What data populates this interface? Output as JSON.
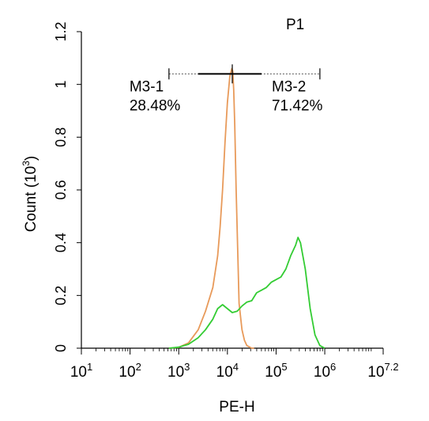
{
  "chart_data": {
    "type": "line",
    "title": "P1",
    "title_color": "#33cc33",
    "xlabel": "PE-H",
    "ylabel": "Count (10³)",
    "ylabel_main": "Count (10",
    "ylabel_exp": "3",
    "ylabel_close": ")",
    "x_scale": "log",
    "xlim": [
      10,
      15848931.9
    ],
    "ylim": [
      0,
      1.2
    ],
    "grid": false,
    "x_ticks": [
      {
        "value": 10,
        "base": "10",
        "exp": "1"
      },
      {
        "value": 100,
        "base": "10",
        "exp": "2"
      },
      {
        "value": 1000,
        "base": "10",
        "exp": "3"
      },
      {
        "value": 10000,
        "base": "10",
        "exp": "4"
      },
      {
        "value": 100000,
        "base": "10",
        "exp": "5"
      },
      {
        "value": 1000000,
        "base": "10",
        "exp": "6"
      },
      {
        "value": 15848931.9,
        "base": "10",
        "exp": "7.2"
      }
    ],
    "y_ticks": [
      {
        "value": 0,
        "label": "0"
      },
      {
        "value": 0.2,
        "label": "0.2"
      },
      {
        "value": 0.4,
        "label": "0.4"
      },
      {
        "value": 0.6,
        "label": "0.6"
      },
      {
        "value": 0.8,
        "label": "0.8"
      },
      {
        "value": 1,
        "label": "1"
      },
      {
        "value": 1.2,
        "label": "1.2"
      }
    ],
    "series": [
      {
        "color": "#e89a5a",
        "x": [
          630,
          1000,
          1585,
          2512,
          3548,
          5012,
          6310,
          7079,
          7943,
          8913,
          10000,
          11220,
          12303,
          12882,
          13490,
          14125,
          15136,
          16218,
          17378,
          19953,
          22387,
          25119,
          31623,
          35481
        ],
        "y": [
          0,
          0.003,
          0.02,
          0.07,
          0.14,
          0.23,
          0.35,
          0.46,
          0.6,
          0.78,
          0.93,
          1.03,
          1.06,
          1.05,
          0.98,
          0.85,
          0.6,
          0.38,
          0.17,
          0.07,
          0.03,
          0.01,
          0,
          0
        ]
      },
      {
        "color": "#33cc33",
        "x": [
          630,
          1000,
          1585,
          2512,
          3548,
          5012,
          6310,
          7943,
          10000,
          12589,
          15849,
          19953,
          25119,
          31623,
          39811,
          50119,
          63096,
          79433,
          100000,
          125893,
          158489,
          199526,
          251189,
          281838,
          316228,
          398107,
          501187,
          630957,
          794328,
          1000000
        ],
        "y": [
          0,
          0.004,
          0.015,
          0.04,
          0.07,
          0.11,
          0.15,
          0.165,
          0.15,
          0.135,
          0.14,
          0.16,
          0.175,
          0.18,
          0.21,
          0.22,
          0.23,
          0.25,
          0.26,
          0.27,
          0.3,
          0.35,
          0.39,
          0.42,
          0.4,
          0.3,
          0.15,
          0.05,
          0.01,
          0
        ]
      }
    ],
    "gates": [
      {
        "name": "M3-1",
        "percent": "28.48%",
        "x_min": 630,
        "x_max": 12589
      },
      {
        "name": "M3-2",
        "percent": "71.42%",
        "x_min": 12589,
        "x_max": 794328
      }
    ],
    "gate_y": 1.04,
    "gate_solid_range": [
      2512,
      50119
    ]
  }
}
